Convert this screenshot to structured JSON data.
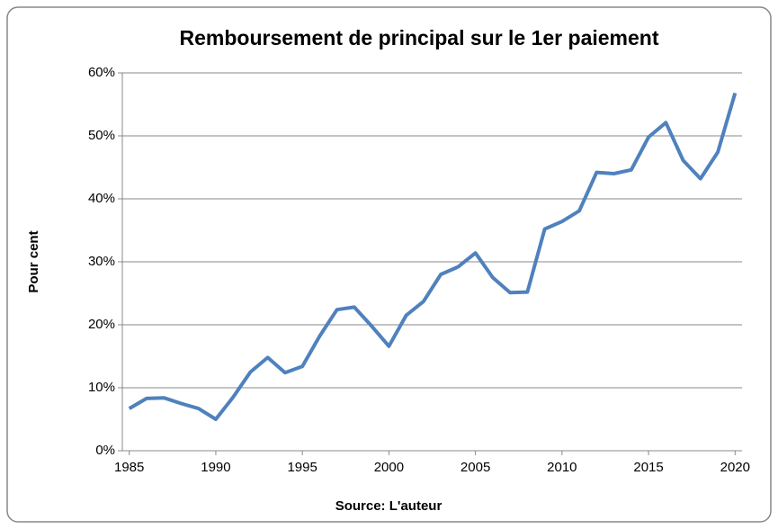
{
  "chart_data": {
    "type": "line",
    "title": "Remboursement de principal sur le 1er paiement",
    "x_label": "Source: L'auteur",
    "y_label": "Pour cent",
    "x": [
      1985,
      1986,
      1987,
      1988,
      1989,
      1990,
      1991,
      1992,
      1993,
      1994,
      1995,
      1996,
      1997,
      1998,
      1999,
      2000,
      2001,
      2002,
      2003,
      2004,
      2005,
      2006,
      2007,
      2008,
      2009,
      2010,
      2011,
      2012,
      2013,
      2014,
      2015,
      2016,
      2017,
      2018,
      2019,
      2020
    ],
    "series": [
      {
        "name": "Pour cent",
        "color": "#4f81bd",
        "values": [
          6.7,
          8.3,
          8.4,
          7.5,
          6.7,
          5.0,
          8.5,
          12.5,
          14.8,
          12.4,
          13.4,
          18.2,
          22.4,
          22.8,
          19.8,
          16.6,
          21.5,
          23.7,
          28.0,
          29.2,
          31.4,
          27.5,
          25.1,
          25.2,
          35.2,
          36.4,
          38.1,
          44.2,
          44.0,
          44.6,
          49.8,
          52.1,
          46.1,
          43.2,
          47.4,
          56.8
        ]
      }
    ],
    "xlim": [
      1984.6,
      2020.4
    ],
    "xticks": [
      1985,
      1990,
      1995,
      2000,
      2005,
      2010,
      2015,
      2020
    ],
    "ylim": [
      0,
      60
    ],
    "yticks": [
      {
        "value": 0,
        "label": "0%"
      },
      {
        "value": 10,
        "label": "10%"
      },
      {
        "value": 20,
        "label": "20%"
      },
      {
        "value": 30,
        "label": "30%"
      },
      {
        "value": 40,
        "label": "40%"
      },
      {
        "value": 50,
        "label": "50%"
      },
      {
        "value": 60,
        "label": "60%"
      }
    ],
    "grid": true
  }
}
